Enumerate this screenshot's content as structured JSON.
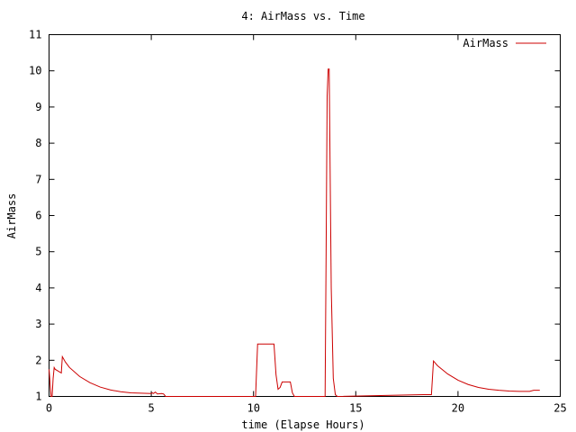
{
  "chart_data": {
    "type": "line",
    "title": "4: AirMass vs. Time",
    "xlabel": "time (Elapse Hours)",
    "ylabel": "AirMass",
    "xlim": [
      0,
      25
    ],
    "ylim": [
      1,
      11
    ],
    "xticks": [
      0,
      5,
      10,
      15,
      20,
      25
    ],
    "yticks": [
      1,
      2,
      3,
      4,
      5,
      6,
      7,
      8,
      9,
      10,
      11
    ],
    "grid": false,
    "legend_position": "top-right",
    "series": [
      {
        "name": "AirMass",
        "color": "#cc0000",
        "x": [
          0,
          0.1,
          0.15,
          0.2,
          0.25,
          0.3,
          0.6,
          0.65,
          0.8,
          1.0,
          1.5,
          2.0,
          2.5,
          3.0,
          3.5,
          4.0,
          4.5,
          5.0,
          5.05,
          5.1,
          5.2,
          5.3,
          5.5,
          5.6,
          5.7,
          10.0,
          10.1,
          10.2,
          10.3,
          10.4,
          10.6,
          11.0,
          11.1,
          11.2,
          11.3,
          11.4,
          11.6,
          11.8,
          11.9,
          12.0,
          13.4,
          13.5,
          13.55,
          13.6,
          13.65,
          13.7,
          13.8,
          13.9,
          14.0,
          14.1,
          18.3,
          18.7,
          18.8,
          19.0,
          19.5,
          20.0,
          20.5,
          21.0,
          21.5,
          22.0,
          22.5,
          23.0,
          23.5,
          23.7,
          24.0
        ],
        "y": [
          1.75,
          1.0,
          1.0,
          1.5,
          1.8,
          1.75,
          1.65,
          2.1,
          1.95,
          1.8,
          1.55,
          1.38,
          1.26,
          1.18,
          1.13,
          1.1,
          1.09,
          1.08,
          1.1,
          1.08,
          1.12,
          1.07,
          1.08,
          1.07,
          1.0,
          1.0,
          1.0,
          2.45,
          2.45,
          2.45,
          2.45,
          2.45,
          1.6,
          1.2,
          1.25,
          1.4,
          1.4,
          1.4,
          1.1,
          1.0,
          1.0,
          1.0,
          5.0,
          9.3,
          10.05,
          10.05,
          4.0,
          1.5,
          1.05,
          1.0,
          1.05,
          1.05,
          1.98,
          1.85,
          1.62,
          1.45,
          1.33,
          1.25,
          1.2,
          1.17,
          1.15,
          1.14,
          1.14,
          1.17,
          1.17
        ]
      }
    ]
  }
}
